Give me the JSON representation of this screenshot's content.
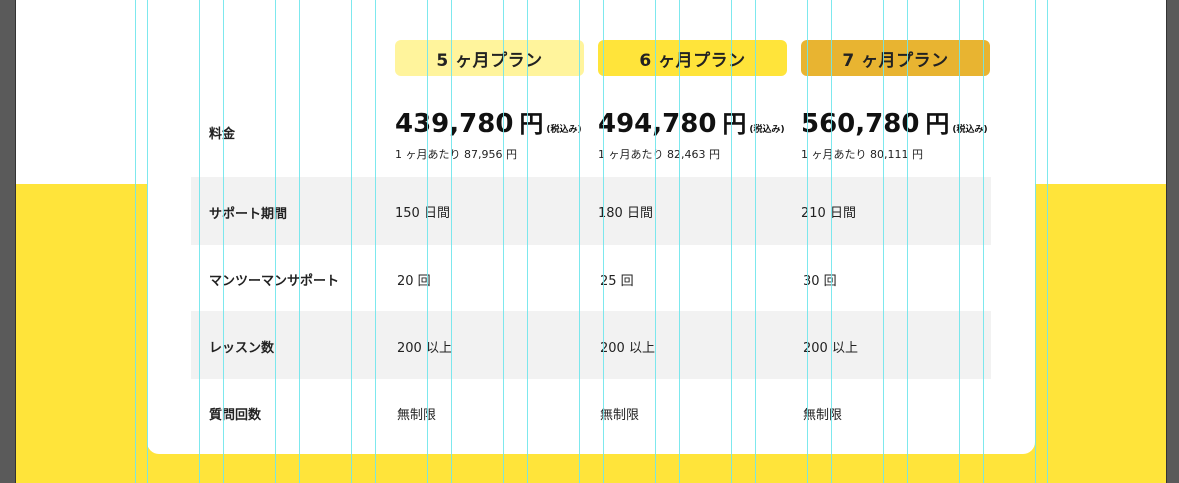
{
  "plans": [
    {
      "name": "5 ヶ月プラン",
      "price": "439,780",
      "yen": "円",
      "tax": "(税込み)",
      "per_month": "1 ヶ月あたり 87,956 円",
      "support": "150 日間",
      "mentoring": "20 回",
      "lessons": "200 以上",
      "questions": "無制限",
      "color": "#fff49c"
    },
    {
      "name": "6 ヶ月プラン",
      "price": "494,780",
      "yen": "円",
      "tax": "(税込み)",
      "per_month": "1 ヶ月あたり 82,463 円",
      "support": "180 日間",
      "mentoring": "25 回",
      "lessons": "200 以上",
      "questions": "無制限",
      "color": "#ffe43a"
    },
    {
      "name": "7 ヶ月プラン",
      "price": "560,780",
      "yen": "円",
      "tax": "(税込み)",
      "per_month": "1 ヶ月あたり 80,111 円",
      "support": "210 日間",
      "mentoring": "30 回",
      "lessons": "200 以上",
      "questions": "無制限",
      "color": "#e8b431"
    }
  ],
  "row_labels": {
    "price": "料金",
    "support": "サポート期間",
    "mentoring": "マンツーマンサポート",
    "lessons": "レッスン数",
    "questions": "質問回数"
  },
  "colors": {
    "background_band": "#ffe43a",
    "row_shade": "#f2f2f2",
    "guide": "#6fe6ec"
  }
}
